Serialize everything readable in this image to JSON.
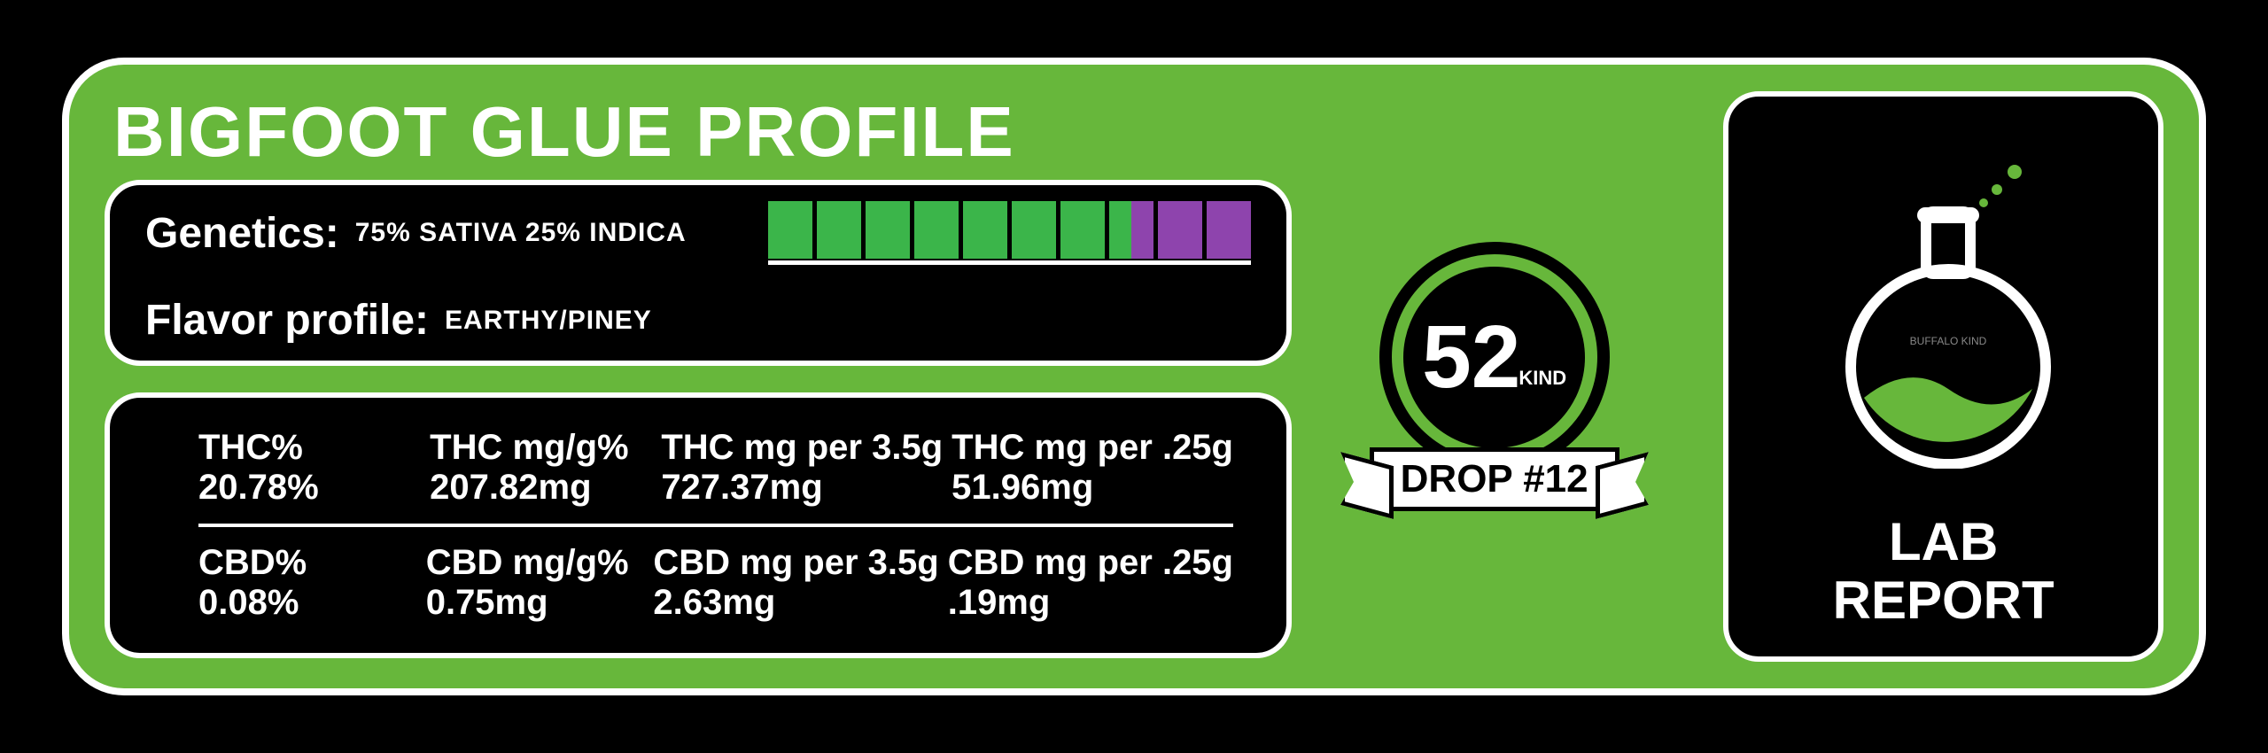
{
  "colors": {
    "background": "#000000",
    "card_bg": "#67b73b",
    "border": "#ffffff",
    "text": "#ffffff",
    "sativa_bar": "#3bb54a",
    "indica_bar": "#8e44ad",
    "flask_fill": "#67b73b"
  },
  "title": "BIGFOOT GLUE PROFILE",
  "profile": {
    "genetics_label": "Genetics:",
    "genetics_value": "75% SATIVA 25% INDICA",
    "flavor_label": "Flavor profile:",
    "flavor_value": "EARTHY/PINEY",
    "bar": {
      "total_segments": 10,
      "sativa_segments": 7,
      "split_segment": 1,
      "indica_segments": 2,
      "sativa_color": "#3bb54a",
      "indica_color": "#8e44ad"
    }
  },
  "stats": {
    "thc": [
      {
        "h": "THC%",
        "v": "20.78%"
      },
      {
        "h": "THC mg/g%",
        "v": "207.82mg"
      },
      {
        "h": "THC mg per 3.5g",
        "v": "727.37mg"
      },
      {
        "h": "THC mg per .25g",
        "v": " 51.96mg"
      }
    ],
    "cbd": [
      {
        "h": "CBD%",
        "v": "0.08%"
      },
      {
        "h": "CBD mg/g%",
        "v": "0.75mg"
      },
      {
        "h": "CBD mg per 3.5g",
        "v": "2.63mg"
      },
      {
        "h": "CBD mg per .25g",
        "v": ".19mg"
      }
    ]
  },
  "brand": {
    "number": "52",
    "suffix": "KIND",
    "drop": "DROP #12"
  },
  "lab": {
    "line1": "LAB",
    "line2": "REPORT",
    "flask_label": "BUFFALO KIND"
  }
}
